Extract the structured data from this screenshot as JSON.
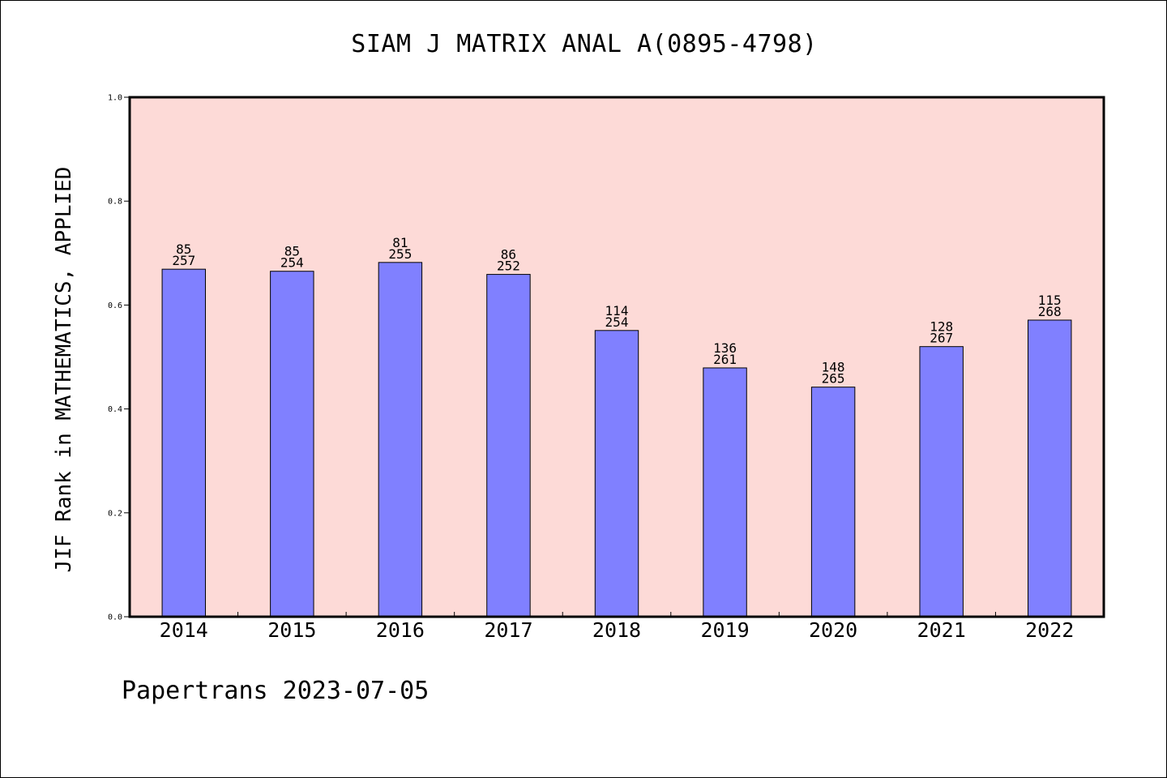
{
  "chart_data": {
    "type": "bar",
    "title": "SIAM J MATRIX ANAL A(0895-4798)",
    "xlabel": "",
    "ylabel": "JIF Rank in MATHEMATICS, APPLIED",
    "ylim": [
      0.0,
      1.0
    ],
    "yticks": [
      "0.0",
      "0.2",
      "0.4",
      "0.6",
      "0.8",
      "1.0"
    ],
    "categories": [
      "2014",
      "2015",
      "2016",
      "2017",
      "2018",
      "2019",
      "2020",
      "2021",
      "2022"
    ],
    "values": [
      0.669,
      0.665,
      0.682,
      0.659,
      0.551,
      0.479,
      0.442,
      0.52,
      0.571
    ],
    "rank_labels": [
      [
        "85",
        "257"
      ],
      [
        "85",
        "254"
      ],
      [
        "81",
        "255"
      ],
      [
        "86",
        "252"
      ],
      [
        "114",
        "254"
      ],
      [
        "136",
        "261"
      ],
      [
        "148",
        "265"
      ],
      [
        "128",
        "267"
      ],
      [
        "115",
        "268"
      ]
    ],
    "grid": false,
    "legend": "none",
    "colors": {
      "plot_background": "#fddad7",
      "bar_fill": "#8080ff",
      "bar_stroke": "#000000"
    }
  },
  "footer": {
    "credit": "Papertrans 2023-07-05"
  }
}
